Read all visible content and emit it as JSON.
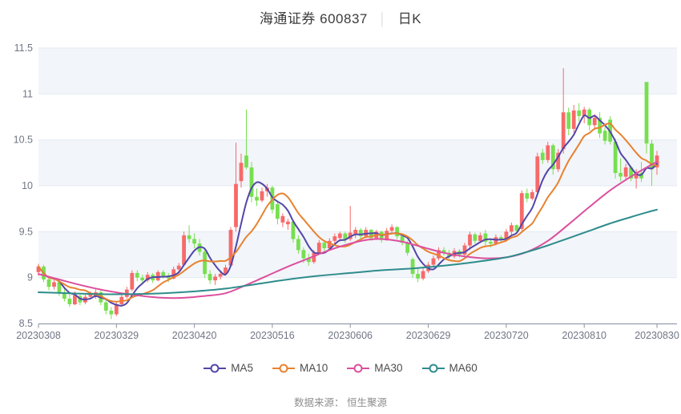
{
  "header": {
    "stock_title": "海通证券 600837",
    "separator": "│",
    "period_label": "日K"
  },
  "footer": {
    "source_text": "数据来源： 恒生聚源"
  },
  "colors": {
    "up": "#F76A6A",
    "down": "#77DF4F",
    "band": "#F2F5FA",
    "grid": "#E4EAF3",
    "axis": "#8C93A3",
    "tick_text": "#707684",
    "title_text": "#3c3c3c",
    "footer_text": "#8f8f8f"
  },
  "chart_data": {
    "type": "candlestick",
    "title": "海通证券 600837 日K",
    "y_axis": {
      "min": 8.5,
      "max": 11.5,
      "ticks": [
        8.5,
        9,
        9.5,
        10,
        10.5,
        11,
        11.5
      ]
    },
    "x_axis": {
      "tick_labels": [
        "20230308",
        "20230329",
        "20230420",
        "20230516",
        "20230606",
        "20230629",
        "20230720",
        "20230810",
        "20230830"
      ],
      "tick_day_index": [
        0,
        15,
        30,
        45,
        60,
        75,
        90,
        105,
        119
      ]
    },
    "legend": [
      "MA5",
      "MA10",
      "MA30",
      "MA60"
    ],
    "candles": {
      "columns": [
        "date",
        "open",
        "high",
        "low",
        "close"
      ],
      "rows": [
        [
          "20230308",
          9.06,
          9.15,
          9.02,
          9.12
        ],
        [
          "20230309",
          9.12,
          9.14,
          8.95,
          8.98
        ],
        [
          "20230310",
          8.98,
          9.0,
          8.86,
          8.9
        ],
        [
          "20230313",
          8.9,
          8.98,
          8.87,
          8.95
        ],
        [
          "20230314",
          8.95,
          8.97,
          8.8,
          8.84
        ],
        [
          "20230315",
          8.84,
          8.88,
          8.74,
          8.77
        ],
        [
          "20230316",
          8.77,
          8.82,
          8.68,
          8.71
        ],
        [
          "20230317",
          8.71,
          8.85,
          8.7,
          8.81
        ],
        [
          "20230320",
          8.8,
          8.82,
          8.7,
          8.73
        ],
        [
          "20230321",
          8.73,
          8.82,
          8.71,
          8.79
        ],
        [
          "20230322",
          8.79,
          8.85,
          8.76,
          8.82
        ],
        [
          "20230323",
          8.8,
          8.87,
          8.77,
          8.84
        ],
        [
          "20230324",
          8.84,
          8.86,
          8.7,
          8.73
        ],
        [
          "20230327",
          8.73,
          8.75,
          8.6,
          8.64
        ],
        [
          "20230328",
          8.64,
          8.68,
          8.55,
          8.6
        ],
        [
          "20230329",
          8.6,
          8.74,
          8.58,
          8.71
        ],
        [
          "20230330",
          8.71,
          8.82,
          8.69,
          8.79
        ],
        [
          "20230331",
          8.79,
          8.9,
          8.77,
          8.87
        ],
        [
          "20230403",
          8.87,
          9.08,
          8.85,
          9.05
        ],
        [
          "20230404",
          9.05,
          9.08,
          8.96,
          9.0
        ],
        [
          "20230406",
          9.0,
          9.03,
          8.93,
          8.97
        ],
        [
          "20230407",
          8.97,
          9.06,
          8.95,
          9.03
        ],
        [
          "20230410",
          9.03,
          9.05,
          8.94,
          8.97
        ],
        [
          "20230411",
          8.97,
          9.08,
          8.96,
          9.06
        ],
        [
          "20230412",
          9.06,
          9.08,
          8.99,
          9.02
        ],
        [
          "20230413",
          9.02,
          9.05,
          8.95,
          8.99
        ],
        [
          "20230414",
          8.99,
          9.12,
          8.98,
          9.09
        ],
        [
          "20230417",
          9.09,
          9.16,
          9.05,
          9.13
        ],
        [
          "20230418",
          9.14,
          9.5,
          9.12,
          9.46
        ],
        [
          "20230419",
          9.46,
          9.57,
          9.38,
          9.42
        ],
        [
          "20230420",
          9.42,
          9.48,
          9.32,
          9.37
        ],
        [
          "20230421",
          9.37,
          9.42,
          9.24,
          9.28
        ],
        [
          "20230424",
          9.28,
          9.3,
          9.0,
          9.04
        ],
        [
          "20230425",
          9.04,
          9.08,
          8.93,
          8.97
        ],
        [
          "20230426",
          8.97,
          9.04,
          8.92,
          9.01
        ],
        [
          "20230427",
          9.01,
          9.07,
          8.98,
          9.04
        ],
        [
          "20230428",
          9.04,
          9.14,
          9.02,
          9.11
        ],
        [
          "20230504",
          9.13,
          9.55,
          9.11,
          9.52
        ],
        [
          "20230505",
          9.55,
          10.47,
          9.5,
          10.02
        ],
        [
          "20230508",
          10.05,
          10.35,
          9.98,
          10.25
        ],
        [
          "20230509",
          10.33,
          10.83,
          10.18,
          10.2
        ],
        [
          "20230510",
          10.2,
          10.26,
          9.82,
          9.88
        ],
        [
          "20230511",
          9.88,
          9.97,
          9.78,
          9.84
        ],
        [
          "20230512",
          9.84,
          9.98,
          9.82,
          9.94
        ],
        [
          "20230515",
          9.94,
          10.02,
          9.88,
          9.98
        ],
        [
          "20230516",
          9.98,
          10.0,
          9.7,
          9.74
        ],
        [
          "20230517",
          9.8,
          9.82,
          9.58,
          9.64
        ],
        [
          "20230518",
          9.6,
          9.7,
          9.55,
          9.67
        ],
        [
          "20230519",
          9.58,
          9.64,
          9.52,
          9.61
        ],
        [
          "20230522",
          9.61,
          9.62,
          9.38,
          9.42
        ],
        [
          "20230523",
          9.42,
          9.46,
          9.26,
          9.3
        ],
        [
          "20230524",
          9.3,
          9.33,
          9.16,
          9.21
        ],
        [
          "20230525",
          9.21,
          9.26,
          9.13,
          9.17
        ],
        [
          "20230526",
          9.17,
          9.3,
          9.15,
          9.27
        ],
        [
          "20230529",
          9.27,
          9.41,
          9.25,
          9.38
        ],
        [
          "20230530",
          9.38,
          9.4,
          9.28,
          9.32
        ],
        [
          "20230531",
          9.32,
          9.43,
          9.3,
          9.4
        ],
        [
          "20230601",
          9.4,
          9.48,
          9.36,
          9.45
        ],
        [
          "20230602",
          9.43,
          9.5,
          9.4,
          9.48
        ],
        [
          "20230605",
          9.48,
          9.5,
          9.38,
          9.41
        ],
        [
          "20230606",
          9.42,
          9.78,
          9.4,
          9.49
        ],
        [
          "20230607",
          9.47,
          9.55,
          9.43,
          9.52
        ],
        [
          "20230608",
          9.52,
          9.54,
          9.42,
          9.45
        ],
        [
          "20230609",
          9.45,
          9.55,
          9.43,
          9.52
        ],
        [
          "20230612",
          9.52,
          9.53,
          9.4,
          9.43
        ],
        [
          "20230613",
          9.43,
          9.52,
          9.41,
          9.5
        ],
        [
          "20230614",
          9.5,
          9.51,
          9.38,
          9.41
        ],
        [
          "20230615",
          9.41,
          9.54,
          9.4,
          9.51
        ],
        [
          "20230616",
          9.51,
          9.58,
          9.48,
          9.55
        ],
        [
          "20230619",
          9.55,
          9.56,
          9.42,
          9.45
        ],
        [
          "20230620",
          9.45,
          9.47,
          9.35,
          9.38
        ],
        [
          "20230621",
          9.38,
          9.4,
          9.24,
          9.27
        ],
        [
          "20230626",
          9.2,
          9.22,
          9.0,
          9.04
        ],
        [
          "20230627",
          9.04,
          9.1,
          8.95,
          8.99
        ],
        [
          "20230628",
          8.99,
          9.1,
          8.97,
          9.07
        ],
        [
          "20230629",
          9.07,
          9.17,
          9.05,
          9.14
        ],
        [
          "20230630",
          9.14,
          9.24,
          9.12,
          9.21
        ],
        [
          "20230703",
          9.21,
          9.33,
          9.19,
          9.3
        ],
        [
          "20230704",
          9.3,
          9.33,
          9.24,
          9.27
        ],
        [
          "20230705",
          9.27,
          9.3,
          9.2,
          9.23
        ],
        [
          "20230706",
          9.23,
          9.32,
          9.21,
          9.29
        ],
        [
          "20230707",
          9.29,
          9.31,
          9.22,
          9.25
        ],
        [
          "20230710",
          9.25,
          9.38,
          9.23,
          9.35
        ],
        [
          "20230711",
          9.35,
          9.5,
          9.3,
          9.47
        ],
        [
          "20230712",
          9.47,
          9.49,
          9.37,
          9.4
        ],
        [
          "20230713",
          9.4,
          9.49,
          9.38,
          9.46
        ],
        [
          "20230714",
          9.48,
          9.52,
          9.35,
          9.39
        ],
        [
          "20230717",
          9.39,
          9.43,
          9.33,
          9.37
        ],
        [
          "20230718",
          9.37,
          9.47,
          9.35,
          9.44
        ],
        [
          "20230719",
          9.44,
          9.46,
          9.38,
          9.41
        ],
        [
          "20230720",
          9.41,
          9.53,
          9.39,
          9.5
        ],
        [
          "20230721",
          9.5,
          9.6,
          9.47,
          9.57
        ],
        [
          "20230724",
          9.57,
          9.58,
          9.48,
          9.51
        ],
        [
          "20230725",
          9.53,
          9.95,
          9.51,
          9.92
        ],
        [
          "20230726",
          9.92,
          9.97,
          9.82,
          9.86
        ],
        [
          "20230727",
          9.86,
          9.96,
          9.84,
          9.93
        ],
        [
          "20230728",
          9.93,
          10.36,
          9.9,
          10.32
        ],
        [
          "20230731",
          10.36,
          10.4,
          10.24,
          10.28
        ],
        [
          "20230801",
          10.28,
          10.48,
          10.25,
          10.44
        ],
        [
          "20230802",
          10.44,
          10.46,
          10.12,
          10.18
        ],
        [
          "20230803",
          10.18,
          10.4,
          10.15,
          10.36
        ],
        [
          "20230804",
          10.4,
          11.28,
          10.35,
          10.8
        ],
        [
          "20230807",
          10.8,
          10.85,
          10.55,
          10.62
        ],
        [
          "20230808",
          10.62,
          10.88,
          10.58,
          10.82
        ],
        [
          "20230809",
          10.82,
          10.9,
          10.7,
          10.76
        ],
        [
          "20230810",
          10.76,
          10.86,
          10.68,
          10.83
        ],
        [
          "20230811",
          10.83,
          10.85,
          10.6,
          10.66
        ],
        [
          "20230814",
          10.66,
          10.78,
          10.62,
          10.74
        ],
        [
          "20230815",
          10.74,
          10.8,
          10.52,
          10.57
        ],
        [
          "20230816",
          10.6,
          10.64,
          10.45,
          10.49
        ],
        [
          "20230817",
          10.72,
          10.76,
          10.45,
          10.48
        ],
        [
          "20230818",
          10.48,
          10.52,
          10.08,
          10.14
        ],
        [
          "20230821",
          10.14,
          10.3,
          10.05,
          10.1
        ],
        [
          "20230822",
          10.1,
          10.24,
          10.06,
          10.2
        ],
        [
          "20230823",
          10.2,
          10.22,
          10.05,
          10.08
        ],
        [
          "20230824",
          10.08,
          10.18,
          9.97,
          10.14
        ],
        [
          "20230825",
          10.14,
          10.26,
          10.04,
          10.08
        ],
        [
          "20230828",
          11.13,
          11.13,
          10.35,
          10.46
        ],
        [
          "20230829",
          10.46,
          10.5,
          10.0,
          10.18
        ],
        [
          "20230830",
          10.2,
          10.38,
          10.12,
          10.33
        ]
      ]
    },
    "moving_averages": [
      {
        "name": "MA5",
        "color": "#5246A8",
        "window": 5,
        "computed_from_closes": true
      },
      {
        "name": "MA10",
        "color": "#E8822F",
        "window": 10,
        "computed_from_closes": true
      },
      {
        "name": "MA30",
        "color": "#DC4F9D",
        "points": [
          [
            0,
            9.04
          ],
          [
            4,
            8.98
          ],
          [
            8,
            8.92
          ],
          [
            12,
            8.87
          ],
          [
            16,
            8.83
          ],
          [
            20,
            8.8
          ],
          [
            24,
            8.78
          ],
          [
            28,
            8.78
          ],
          [
            32,
            8.8
          ],
          [
            36,
            8.83
          ],
          [
            40,
            8.92
          ],
          [
            44,
            9.02
          ],
          [
            48,
            9.12
          ],
          [
            52,
            9.21
          ],
          [
            56,
            9.3
          ],
          [
            60,
            9.37
          ],
          [
            63,
            9.41
          ],
          [
            66,
            9.42
          ],
          [
            70,
            9.39
          ],
          [
            74,
            9.33
          ],
          [
            78,
            9.27
          ],
          [
            82,
            9.23
          ],
          [
            86,
            9.21
          ],
          [
            90,
            9.22
          ],
          [
            94,
            9.28
          ],
          [
            98,
            9.4
          ],
          [
            102,
            9.58
          ],
          [
            106,
            9.77
          ],
          [
            110,
            9.95
          ],
          [
            114,
            10.1
          ],
          [
            117,
            10.2
          ],
          [
            119,
            10.26
          ]
        ]
      },
      {
        "name": "MA60",
        "color": "#2E8C8C",
        "points": [
          [
            0,
            8.84
          ],
          [
            6,
            8.83
          ],
          [
            12,
            8.82
          ],
          [
            18,
            8.82
          ],
          [
            24,
            8.83
          ],
          [
            30,
            8.85
          ],
          [
            36,
            8.88
          ],
          [
            42,
            8.93
          ],
          [
            48,
            8.98
          ],
          [
            54,
            9.02
          ],
          [
            60,
            9.05
          ],
          [
            66,
            9.08
          ],
          [
            72,
            9.1
          ],
          [
            78,
            9.13
          ],
          [
            84,
            9.17
          ],
          [
            90,
            9.22
          ],
          [
            94,
            9.28
          ],
          [
            98,
            9.35
          ],
          [
            102,
            9.43
          ],
          [
            106,
            9.51
          ],
          [
            110,
            9.59
          ],
          [
            114,
            9.66
          ],
          [
            117,
            9.71
          ],
          [
            119,
            9.74
          ]
        ]
      }
    ]
  }
}
